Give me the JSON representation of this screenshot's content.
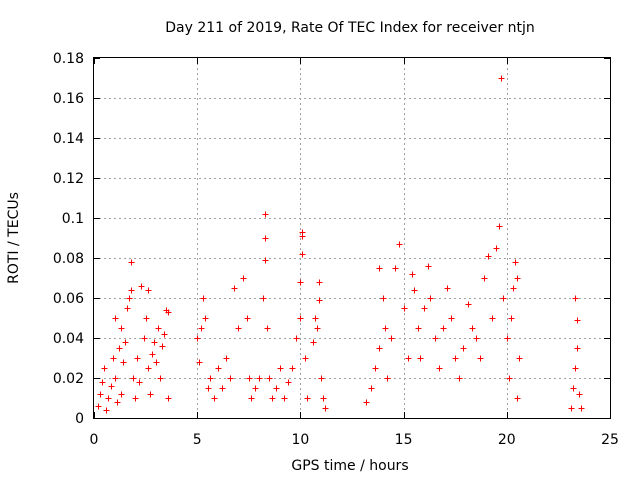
{
  "chart_data": {
    "type": "scatter",
    "title": "Day 211 of 2019, Rate Of TEC Index for receiver ntjn",
    "xlabel": "GPS time / hours",
    "ylabel": "ROTI / TECUs",
    "xlim": [
      0,
      25
    ],
    "ylim": [
      0,
      0.18
    ],
    "x_ticks": [
      "0",
      "5",
      "10",
      "15",
      "20",
      "25"
    ],
    "y_ticks": [
      "0",
      "0.02",
      "0.04",
      "0.06",
      "0.08",
      "0.1",
      "0.12",
      "0.14",
      "0.16",
      "0.18"
    ],
    "x_tick_values": [
      0,
      5,
      10,
      15,
      20,
      25
    ],
    "y_tick_values": [
      0,
      0.02,
      0.04,
      0.06,
      0.08,
      0.1,
      0.12,
      0.14,
      0.16,
      0.18
    ],
    "grid": true,
    "marker": "+",
    "color": "#ff0000",
    "series": [
      {
        "name": "ROTI",
        "points": [
          [
            0.2,
            0.006
          ],
          [
            0.3,
            0.012
          ],
          [
            0.4,
            0.018
          ],
          [
            0.5,
            0.025
          ],
          [
            0.6,
            0.004
          ],
          [
            0.7,
            0.01
          ],
          [
            0.8,
            0.016
          ],
          [
            0.9,
            0.03
          ],
          [
            1.0,
            0.02
          ],
          [
            1.0,
            0.05
          ],
          [
            1.1,
            0.008
          ],
          [
            1.2,
            0.035
          ],
          [
            1.3,
            0.045
          ],
          [
            1.3,
            0.012
          ],
          [
            1.4,
            0.028
          ],
          [
            1.5,
            0.038
          ],
          [
            1.6,
            0.055
          ],
          [
            1.7,
            0.06
          ],
          [
            1.8,
            0.078
          ],
          [
            1.8,
            0.064
          ],
          [
            1.9,
            0.02
          ],
          [
            2.0,
            0.01
          ],
          [
            2.1,
            0.03
          ],
          [
            2.2,
            0.018
          ],
          [
            2.3,
            0.066
          ],
          [
            2.4,
            0.04
          ],
          [
            2.5,
            0.05
          ],
          [
            2.6,
            0.064
          ],
          [
            2.6,
            0.025
          ],
          [
            2.7,
            0.012
          ],
          [
            2.8,
            0.032
          ],
          [
            2.9,
            0.038
          ],
          [
            3.0,
            0.028
          ],
          [
            3.1,
            0.045
          ],
          [
            3.2,
            0.02
          ],
          [
            3.3,
            0.036
          ],
          [
            3.4,
            0.042
          ],
          [
            3.5,
            0.054
          ],
          [
            3.6,
            0.053
          ],
          [
            3.6,
            0.01
          ],
          [
            5.0,
            0.04
          ],
          [
            5.1,
            0.028
          ],
          [
            5.2,
            0.045
          ],
          [
            5.3,
            0.06
          ],
          [
            5.4,
            0.05
          ],
          [
            5.5,
            0.015
          ],
          [
            5.6,
            0.02
          ],
          [
            5.8,
            0.01
          ],
          [
            6.0,
            0.025
          ],
          [
            6.2,
            0.015
          ],
          [
            6.4,
            0.03
          ],
          [
            6.6,
            0.02
          ],
          [
            6.8,
            0.065
          ],
          [
            7.0,
            0.045
          ],
          [
            7.2,
            0.07
          ],
          [
            7.4,
            0.05
          ],
          [
            7.5,
            0.02
          ],
          [
            7.6,
            0.01
          ],
          [
            7.8,
            0.015
          ],
          [
            8.0,
            0.02
          ],
          [
            8.2,
            0.06
          ],
          [
            8.3,
            0.079
          ],
          [
            8.3,
            0.09
          ],
          [
            8.3,
            0.102
          ],
          [
            8.4,
            0.045
          ],
          [
            8.5,
            0.02
          ],
          [
            8.6,
            0.01
          ],
          [
            8.8,
            0.015
          ],
          [
            9.0,
            0.025
          ],
          [
            9.2,
            0.01
          ],
          [
            9.4,
            0.018
          ],
          [
            9.6,
            0.025
          ],
          [
            9.8,
            0.04
          ],
          [
            10.0,
            0.05
          ],
          [
            10.0,
            0.068
          ],
          [
            10.1,
            0.082
          ],
          [
            10.1,
            0.091
          ],
          [
            10.1,
            0.093
          ],
          [
            10.2,
            0.03
          ],
          [
            10.3,
            0.01
          ],
          [
            10.6,
            0.038
          ],
          [
            10.7,
            0.05
          ],
          [
            10.8,
            0.045
          ],
          [
            10.9,
            0.068
          ],
          [
            10.9,
            0.059
          ],
          [
            11.0,
            0.02
          ],
          [
            11.1,
            0.01
          ],
          [
            11.2,
            0.005
          ],
          [
            13.2,
            0.008
          ],
          [
            13.4,
            0.015
          ],
          [
            13.6,
            0.025
          ],
          [
            13.8,
            0.035
          ],
          [
            13.8,
            0.075
          ],
          [
            14.0,
            0.06
          ],
          [
            14.1,
            0.045
          ],
          [
            14.2,
            0.02
          ],
          [
            14.4,
            0.04
          ],
          [
            14.6,
            0.075
          ],
          [
            14.8,
            0.087
          ],
          [
            15.0,
            0.055
          ],
          [
            15.2,
            0.03
          ],
          [
            15.4,
            0.072
          ],
          [
            15.5,
            0.064
          ],
          [
            15.7,
            0.045
          ],
          [
            15.8,
            0.03
          ],
          [
            16.0,
            0.055
          ],
          [
            16.2,
            0.076
          ],
          [
            16.3,
            0.06
          ],
          [
            16.5,
            0.04
          ],
          [
            16.7,
            0.025
          ],
          [
            16.9,
            0.045
          ],
          [
            17.1,
            0.065
          ],
          [
            17.3,
            0.05
          ],
          [
            17.5,
            0.03
          ],
          [
            17.7,
            0.02
          ],
          [
            17.9,
            0.035
          ],
          [
            18.1,
            0.057
          ],
          [
            18.3,
            0.045
          ],
          [
            18.5,
            0.04
          ],
          [
            18.7,
            0.03
          ],
          [
            18.9,
            0.07
          ],
          [
            19.1,
            0.081
          ],
          [
            19.3,
            0.05
          ],
          [
            19.5,
            0.085
          ],
          [
            19.6,
            0.096
          ],
          [
            19.7,
            0.17
          ],
          [
            19.8,
            0.06
          ],
          [
            20.0,
            0.04
          ],
          [
            20.1,
            0.02
          ],
          [
            20.2,
            0.05
          ],
          [
            20.3,
            0.065
          ],
          [
            20.4,
            0.078
          ],
          [
            20.5,
            0.07
          ],
          [
            20.5,
            0.01
          ],
          [
            20.6,
            0.03
          ],
          [
            23.1,
            0.005
          ],
          [
            23.2,
            0.015
          ],
          [
            23.3,
            0.025
          ],
          [
            23.3,
            0.06
          ],
          [
            23.4,
            0.035
          ],
          [
            23.4,
            0.049
          ],
          [
            23.5,
            0.012
          ],
          [
            23.6,
            0.005
          ]
        ]
      }
    ]
  }
}
